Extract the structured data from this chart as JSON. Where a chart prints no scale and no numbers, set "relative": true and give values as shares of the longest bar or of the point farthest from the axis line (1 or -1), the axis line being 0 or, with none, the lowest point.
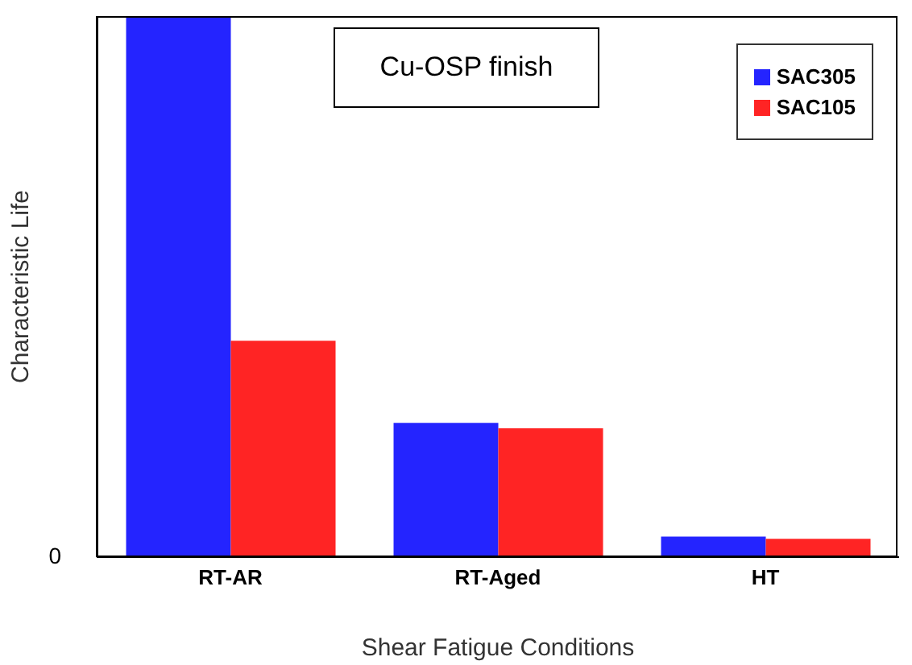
{
  "chart_data": {
    "type": "bar",
    "title": "Cu-OSP finish",
    "xlabel": "Shear Fatigue Conditions",
    "ylabel": "Characteristic Life",
    "categories": [
      "RT-AR",
      "RT-Aged",
      "HT"
    ],
    "relative": true,
    "legend": "top right",
    "annotations": [
      "0"
    ],
    "series": [
      {
        "name": "SAC305",
        "color": "#2424ff",
        "values": [
          1,
          0.248,
          0.038
        ]
      },
      {
        "name": "SAC105",
        "color": "#ff2424",
        "values": [
          0.4,
          0.238,
          0.034
        ]
      }
    ]
  }
}
